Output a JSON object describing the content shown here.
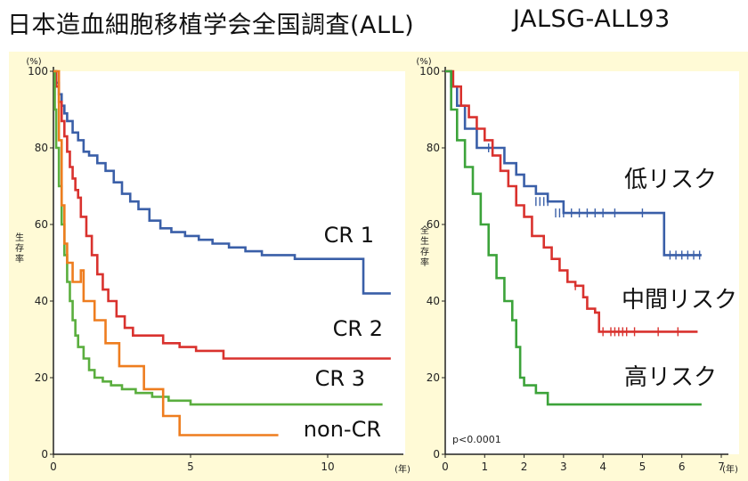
{
  "page": {
    "title_left": "日本造血細胞移植学会全国調査(ALL)",
    "title_right": "JALSG-ALL93"
  },
  "chart_data": [
    {
      "type": "line",
      "step": true,
      "ylabel": "生\n存\n率",
      "yunit": "(%)",
      "xunit": "(年)",
      "xlim": [
        0,
        12.5
      ],
      "ylim": [
        0,
        100
      ],
      "xticks": [
        0,
        5,
        10
      ],
      "yticks": [
        0,
        20,
        40,
        60,
        80,
        100
      ],
      "background": "#fffad6",
      "plot_background": "#ffffff",
      "series": [
        {
          "name": "CR 1",
          "color": "#3a5fa8",
          "points": [
            [
              0,
              100
            ],
            [
              0.1,
              97
            ],
            [
              0.2,
              94
            ],
            [
              0.3,
              91
            ],
            [
              0.4,
              89
            ],
            [
              0.5,
              87
            ],
            [
              0.7,
              84
            ],
            [
              0.9,
              82
            ],
            [
              1.1,
              79
            ],
            [
              1.3,
              78
            ],
            [
              1.6,
              76
            ],
            [
              1.9,
              74
            ],
            [
              2.2,
              71
            ],
            [
              2.5,
              68
            ],
            [
              2.8,
              66
            ],
            [
              3.1,
              64
            ],
            [
              3.5,
              61
            ],
            [
              3.9,
              59
            ],
            [
              4.3,
              58
            ],
            [
              4.8,
              57
            ],
            [
              5.3,
              56
            ],
            [
              5.8,
              55
            ],
            [
              6.4,
              54
            ],
            [
              7.0,
              53
            ],
            [
              7.6,
              52
            ],
            [
              8.2,
              52
            ],
            [
              8.8,
              51
            ],
            [
              9.5,
              51
            ],
            [
              10.2,
              51
            ],
            [
              11.0,
              51
            ],
            [
              11.3,
              51
            ],
            [
              11.3,
              42
            ],
            [
              12.3,
              42
            ]
          ]
        },
        {
          "name": "CR 2",
          "color": "#d9322e",
          "points": [
            [
              0,
              100
            ],
            [
              0.1,
              96
            ],
            [
              0.2,
              92
            ],
            [
              0.3,
              87
            ],
            [
              0.4,
              83
            ],
            [
              0.5,
              79
            ],
            [
              0.6,
              75
            ],
            [
              0.7,
              72
            ],
            [
              0.8,
              69
            ],
            [
              0.9,
              67
            ],
            [
              1.0,
              62
            ],
            [
              1.2,
              57
            ],
            [
              1.4,
              52
            ],
            [
              1.6,
              47
            ],
            [
              1.8,
              43
            ],
            [
              2.0,
              40
            ],
            [
              2.3,
              36
            ],
            [
              2.6,
              33
            ],
            [
              2.9,
              31
            ],
            [
              3.5,
              31
            ],
            [
              4.0,
              29
            ],
            [
              4.6,
              28
            ],
            [
              5.2,
              27
            ],
            [
              6.2,
              25
            ],
            [
              7.5,
              25
            ],
            [
              9.0,
              25
            ],
            [
              10.5,
              25
            ],
            [
              12.3,
              25
            ]
          ]
        },
        {
          "name": "CR 3",
          "color": "#5aae3e",
          "points": [
            [
              0,
              100
            ],
            [
              0.05,
              90
            ],
            [
              0.1,
              80
            ],
            [
              0.2,
              70
            ],
            [
              0.3,
              60
            ],
            [
              0.4,
              52
            ],
            [
              0.5,
              45
            ],
            [
              0.6,
              40
            ],
            [
              0.7,
              35
            ],
            [
              0.8,
              31
            ],
            [
              0.9,
              28
            ],
            [
              1.1,
              25
            ],
            [
              1.3,
              22
            ],
            [
              1.5,
              20
            ],
            [
              1.8,
              19
            ],
            [
              2.1,
              18
            ],
            [
              2.5,
              17
            ],
            [
              3.0,
              16
            ],
            [
              3.6,
              15
            ],
            [
              4.2,
              14
            ],
            [
              5.0,
              13
            ],
            [
              6.0,
              13
            ],
            [
              7.5,
              13
            ],
            [
              9.0,
              13
            ],
            [
              10.5,
              13
            ],
            [
              12.0,
              13
            ]
          ]
        },
        {
          "name": "non-CR",
          "color": "#ee7d1f",
          "points": [
            [
              0,
              100
            ],
            [
              0.2,
              82
            ],
            [
              0.3,
              65
            ],
            [
              0.4,
              55
            ],
            [
              0.5,
              50
            ],
            [
              0.7,
              45
            ],
            [
              1.0,
              48
            ],
            [
              1.1,
              48
            ],
            [
              1.1,
              40
            ],
            [
              1.5,
              40
            ],
            [
              1.5,
              35
            ],
            [
              1.9,
              35
            ],
            [
              1.9,
              29
            ],
            [
              2.4,
              29
            ],
            [
              2.4,
              23
            ],
            [
              3.3,
              23
            ],
            [
              3.3,
              17
            ],
            [
              4.0,
              17
            ],
            [
              4.0,
              10
            ],
            [
              4.6,
              10
            ],
            [
              4.6,
              5
            ],
            [
              8.2,
              5
            ]
          ]
        }
      ],
      "series_labels": [
        "CR 1",
        "CR 2",
        "CR 3",
        "non-CR"
      ]
    },
    {
      "type": "line",
      "step": true,
      "ylabel": "全\n生\n存\n率",
      "yunit": "(%)",
      "xunit": "(年)",
      "xlim": [
        0,
        7
      ],
      "ylim": [
        0,
        100
      ],
      "xticks": [
        0,
        1,
        2,
        3,
        4,
        5,
        6,
        7
      ],
      "yticks": [
        0,
        20,
        40,
        60,
        80,
        100
      ],
      "annotation": "p<0.0001",
      "background": "#fffad6",
      "plot_background": "#ffffff",
      "series": [
        {
          "name": "低リスク",
          "color": "#3a5fa8",
          "points": [
            [
              0,
              100
            ],
            [
              0.15,
              96
            ],
            [
              0.3,
              91
            ],
            [
              0.5,
              85
            ],
            [
              0.8,
              80
            ],
            [
              1.3,
              80
            ],
            [
              1.5,
              76
            ],
            [
              1.8,
              73
            ],
            [
              2.0,
              70
            ],
            [
              2.3,
              68
            ],
            [
              2.6,
              66
            ],
            [
              3.0,
              63
            ],
            [
              3.5,
              63
            ],
            [
              4.0,
              63
            ],
            [
              4.5,
              63
            ],
            [
              5.0,
              63
            ],
            [
              5.55,
              63
            ],
            [
              5.55,
              52
            ],
            [
              6.5,
              52
            ]
          ],
          "censors": [
            [
              1.1,
              80
            ],
            [
              2.3,
              66
            ],
            [
              2.4,
              66
            ],
            [
              2.5,
              66
            ],
            [
              2.6,
              66
            ],
            [
              2.8,
              63
            ],
            [
              2.9,
              63
            ],
            [
              3.0,
              63
            ],
            [
              3.2,
              63
            ],
            [
              3.4,
              63
            ],
            [
              3.6,
              63
            ],
            [
              3.8,
              63
            ],
            [
              4.0,
              63
            ],
            [
              4.3,
              63
            ],
            [
              5.0,
              63
            ],
            [
              5.7,
              52
            ],
            [
              5.85,
              52
            ],
            [
              6.0,
              52
            ],
            [
              6.15,
              52
            ],
            [
              6.3,
              52
            ],
            [
              6.45,
              52
            ]
          ]
        },
        {
          "name": "中間リスク",
          "color": "#d9322e",
          "points": [
            [
              0,
              100
            ],
            [
              0.2,
              96
            ],
            [
              0.4,
              91
            ],
            [
              0.6,
              88
            ],
            [
              0.8,
              85
            ],
            [
              1.0,
              82
            ],
            [
              1.2,
              78
            ],
            [
              1.4,
              74
            ],
            [
              1.6,
              70
            ],
            [
              1.8,
              65
            ],
            [
              2.0,
              62
            ],
            [
              2.2,
              57
            ],
            [
              2.5,
              54
            ],
            [
              2.7,
              51
            ],
            [
              2.9,
              48
            ],
            [
              3.1,
              45
            ],
            [
              3.3,
              44
            ],
            [
              3.5,
              44
            ],
            [
              3.5,
              41
            ],
            [
              3.6,
              38
            ],
            [
              3.8,
              37
            ],
            [
              3.9,
              37
            ],
            [
              3.9,
              32
            ],
            [
              4.5,
              32
            ],
            [
              5.0,
              32
            ],
            [
              5.5,
              32
            ],
            [
              6.0,
              32
            ],
            [
              6.4,
              32
            ]
          ],
          "censors": [
            [
              3.3,
              44
            ],
            [
              4.0,
              32
            ],
            [
              4.2,
              32
            ],
            [
              4.3,
              32
            ],
            [
              4.4,
              32
            ],
            [
              4.5,
              32
            ],
            [
              4.6,
              32
            ],
            [
              4.8,
              32
            ],
            [
              5.4,
              32
            ],
            [
              5.9,
              32
            ]
          ]
        },
        {
          "name": "高リスク",
          "color": "#3ca33a",
          "points": [
            [
              0,
              100
            ],
            [
              0.15,
              90
            ],
            [
              0.3,
              82
            ],
            [
              0.5,
              75
            ],
            [
              0.7,
              68
            ],
            [
              0.9,
              60
            ],
            [
              1.1,
              52
            ],
            [
              1.3,
              46
            ],
            [
              1.5,
              40
            ],
            [
              1.7,
              35
            ],
            [
              1.8,
              28
            ],
            [
              1.9,
              20
            ],
            [
              2.0,
              18
            ],
            [
              2.3,
              16
            ],
            [
              2.6,
              13
            ],
            [
              3.5,
              13
            ],
            [
              4.5,
              13
            ],
            [
              5.5,
              13
            ],
            [
              6.5,
              13
            ]
          ],
          "censors": []
        }
      ],
      "series_labels": [
        "低リスク",
        "中間リスク",
        "高リスク"
      ]
    }
  ]
}
